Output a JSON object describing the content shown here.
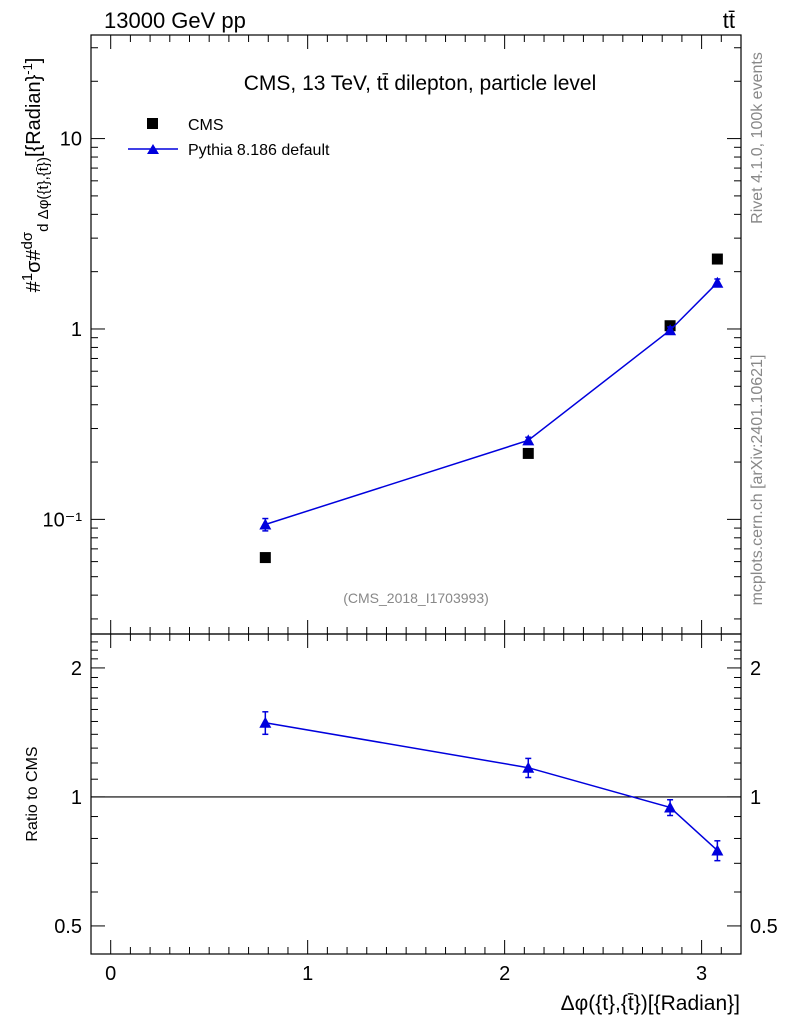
{
  "header": {
    "energy_label": "13000 GeV pp",
    "process_label": "tt̄"
  },
  "side_labels": {
    "rivet": "Rivet 4.1.0,  100k events",
    "mcplots": "mcplots.cern.ch [arXiv:2401.10621]"
  },
  "chart_data": [
    {
      "type": "scatter",
      "title": "CMS, 13 TeV, tt̄ dilepton, particle level",
      "watermark": "(CMS_2018_I1703993)",
      "ylabel": "#frac{1}{#sigma}#frac{d#sigma}{d #Delta#phi({t},{#bar{t}})}[{Radian}^{-1}]",
      "yscale": "log",
      "xlim": [
        -0.1,
        3.2
      ],
      "ylim": [
        0.025,
        35
      ],
      "y_ticks": [
        {
          "value": 10,
          "label": "10"
        },
        {
          "value": 1,
          "label": "1"
        },
        {
          "value": 0.1,
          "label": "10⁻¹"
        }
      ],
      "legend": {
        "placement": "top-left",
        "entries": [
          "CMS",
          "Pythia 8.186 default"
        ]
      },
      "series": [
        {
          "name": "CMS",
          "marker": "square",
          "color": "#000000",
          "x": [
            0.785,
            2.12,
            2.84,
            3.08
          ],
          "y": [
            0.063,
            0.222,
            1.04,
            2.33
          ],
          "yerr": [
            0,
            0,
            0,
            0
          ]
        },
        {
          "name": "Pythia 8.186 default",
          "marker": "triangle",
          "line": true,
          "color": "#0000dd",
          "x": [
            0.785,
            2.12,
            2.84,
            3.08
          ],
          "y": [
            0.094,
            0.26,
            0.985,
            1.75
          ],
          "yerr": [
            0.007,
            0.01,
            0.04,
            0.08
          ]
        }
      ]
    },
    {
      "type": "scatter",
      "ylabel": "Ratio to CMS",
      "xlabel": "Δφ({t},{t̄})[{Radian}]",
      "yscale": "log",
      "xlim": [
        -0.1,
        3.2
      ],
      "ylim": [
        0.43,
        2.4
      ],
      "x_ticks": [
        {
          "value": 0,
          "label": "0"
        },
        {
          "value": 1,
          "label": "1"
        },
        {
          "value": 2,
          "label": "2"
        },
        {
          "value": 3,
          "label": "3"
        }
      ],
      "y_ticks": [
        {
          "value": 2,
          "label": "2"
        },
        {
          "value": 1,
          "label": "1"
        },
        {
          "value": 0.5,
          "label": "0.5"
        }
      ],
      "reference_line": 1,
      "series": [
        {
          "name": "Pythia 8.186 default",
          "marker": "triangle",
          "line": true,
          "color": "#0000dd",
          "x": [
            0.785,
            2.12,
            2.84,
            3.08
          ],
          "y": [
            1.49,
            1.17,
            0.945,
            0.75
          ],
          "yerr": [
            0.09,
            0.06,
            0.04,
            0.04
          ]
        }
      ]
    }
  ]
}
